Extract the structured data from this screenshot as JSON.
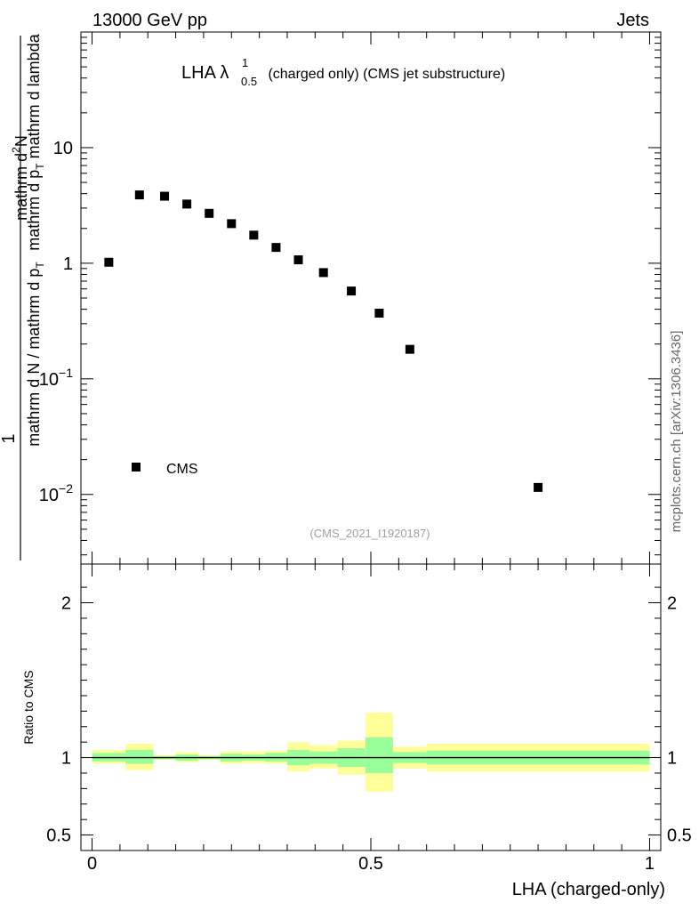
{
  "header": {
    "left": "13000 GeV pp",
    "right": "Jets"
  },
  "side_label": "mcplots.cern.ch [arXiv:1306.3436]",
  "chart_data": {
    "type": "scatter",
    "title_main": "LHA λ",
    "title_sup": "1",
    "title_sub": "0.5",
    "title_rest": " (charged only) (CMS jet substructure)",
    "analysis_id": "(CMS_2021_I1920187)",
    "xlabel": "LHA (charged-only)",
    "ylabel_top": {
      "numerator": "1",
      "denominator": "mathrm d N / mathrm d p",
      "denominator_sub": "T",
      "numerator2": "mathrm d",
      "numerator2_sup": "2",
      "numerator2_rest": "N",
      "denominator2": "mathrm d p",
      "denominator2_sub": "T",
      "denominator2_rest": " mathrm d lambda"
    },
    "ylabel_ratio": "Ratio to CMS",
    "xlim": [
      -0.02,
      1.02
    ],
    "ylim_log": [
      0.0025,
      100
    ],
    "ratio_ylim": [
      0.4,
      2.25
    ],
    "x_ticks": [
      {
        "value": 0,
        "label": "0"
      },
      {
        "value": 0.5,
        "label": "0.5"
      },
      {
        "value": 1,
        "label": "1"
      }
    ],
    "y_ticks_major": [
      {
        "value": 10,
        "base": "10",
        "exp": ""
      },
      {
        "value": 1,
        "base": "1",
        "exp": ""
      },
      {
        "value": 0.1,
        "base": "10",
        "exp": "−1"
      },
      {
        "value": 0.01,
        "base": "10",
        "exp": "−2"
      }
    ],
    "ratio_ticks": [
      {
        "value": 2,
        "label": "2"
      },
      {
        "value": 1,
        "label": "1"
      },
      {
        "value": 0.5,
        "label": "0.5"
      }
    ],
    "legend": [
      {
        "label": "CMS",
        "marker": "square",
        "color": "#000000"
      }
    ],
    "series": [
      {
        "name": "CMS",
        "x": [
          0.03,
          0.085,
          0.13,
          0.17,
          0.21,
          0.25,
          0.29,
          0.33,
          0.37,
          0.415,
          0.465,
          0.515,
          0.57,
          0.8
        ],
        "y": [
          1.02,
          3.9,
          3.8,
          3.25,
          2.7,
          2.2,
          1.75,
          1.37,
          1.07,
          0.83,
          0.575,
          0.37,
          0.18,
          0.0115
        ]
      }
    ],
    "ratio_bands": [
      {
        "x0": 0.0,
        "x1": 0.06,
        "yellow": [
          0.96,
          1.05
        ],
        "green": [
          0.975,
          1.03
        ]
      },
      {
        "x0": 0.06,
        "x1": 0.11,
        "yellow": [
          0.92,
          1.09
        ],
        "green": [
          0.96,
          1.05
        ]
      },
      {
        "x0": 0.11,
        "x1": 0.15,
        "yellow": [
          0.985,
          1.015
        ],
        "green": [
          0.99,
          1.01
        ]
      },
      {
        "x0": 0.15,
        "x1": 0.19,
        "yellow": [
          0.97,
          1.035
        ],
        "green": [
          0.98,
          1.02
        ]
      },
      {
        "x0": 0.19,
        "x1": 0.23,
        "yellow": [
          0.985,
          1.015
        ],
        "green": [
          0.99,
          1.01
        ]
      },
      {
        "x0": 0.23,
        "x1": 0.27,
        "yellow": [
          0.96,
          1.04
        ],
        "green": [
          0.975,
          1.025
        ]
      },
      {
        "x0": 0.27,
        "x1": 0.31,
        "yellow": [
          0.965,
          1.04
        ],
        "green": [
          0.98,
          1.02
        ]
      },
      {
        "x0": 0.31,
        "x1": 0.35,
        "yellow": [
          0.96,
          1.045
        ],
        "green": [
          0.975,
          1.03
        ]
      },
      {
        "x0": 0.35,
        "x1": 0.39,
        "yellow": [
          0.91,
          1.1
        ],
        "green": [
          0.95,
          1.05
        ]
      },
      {
        "x0": 0.39,
        "x1": 0.44,
        "yellow": [
          0.93,
          1.08
        ],
        "green": [
          0.96,
          1.04
        ]
      },
      {
        "x0": 0.44,
        "x1": 0.49,
        "yellow": [
          0.89,
          1.11
        ],
        "green": [
          0.94,
          1.06
        ]
      },
      {
        "x0": 0.49,
        "x1": 0.54,
        "yellow": [
          0.78,
          1.29
        ],
        "green": [
          0.9,
          1.13
        ]
      },
      {
        "x0": 0.54,
        "x1": 0.6,
        "yellow": [
          0.93,
          1.07
        ],
        "green": [
          0.965,
          1.035
        ]
      },
      {
        "x0": 0.6,
        "x1": 1.0,
        "yellow": [
          0.91,
          1.09
        ],
        "green": [
          0.955,
          1.045
        ]
      }
    ],
    "ratio_reference": 1
  }
}
